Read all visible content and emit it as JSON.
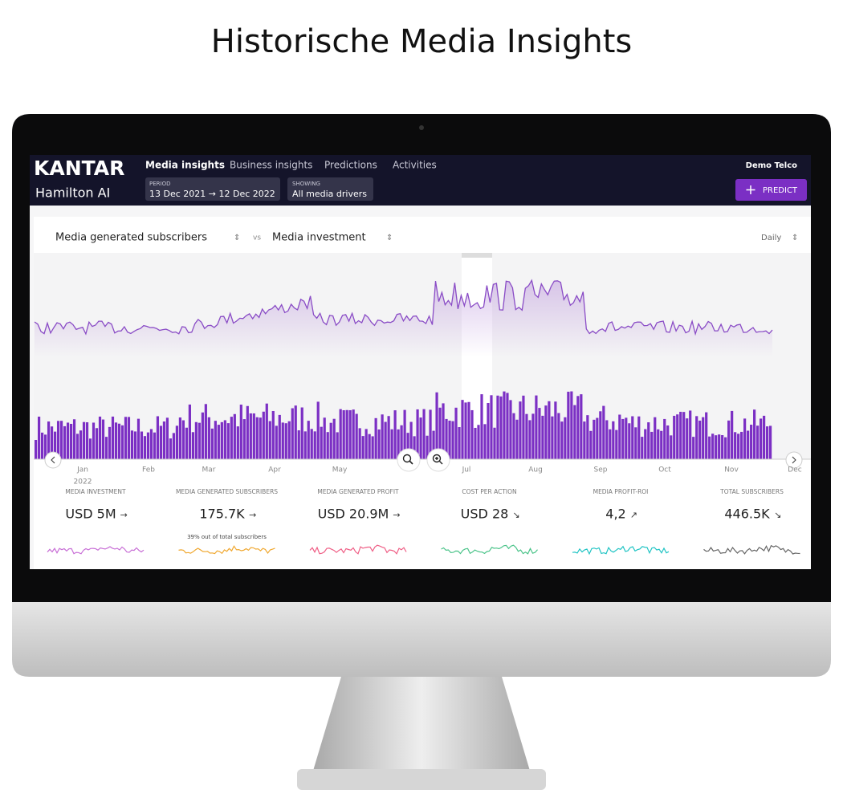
{
  "title": "Historische Media Insights",
  "nav": {
    "brand": "KANTAR",
    "product": "Hamilton AI",
    "tabs": [
      "Media insights",
      "Business insights",
      "Predictions",
      "Activities"
    ],
    "period": {
      "label": "PERIOD",
      "value": "13 Dec 2021 → 12 Dec 2022"
    },
    "showing": {
      "label": "SHOWING",
      "value": "All media drivers"
    },
    "account": "Demo Telco",
    "predict": "PREDICT"
  },
  "chart": {
    "metric_a": "Media generated subscribers",
    "vs": "vs",
    "metric_b": "Media investment",
    "granularity": "Daily",
    "months": [
      "Jan",
      "Feb",
      "Mar",
      "Apr",
      "May",
      "Jul",
      "Aug",
      "Sep",
      "Oct",
      "Nov",
      "Dec"
    ],
    "year": "2022"
  },
  "kpis": [
    {
      "label": "MEDIA INVESTMENT",
      "value": "USD 5M",
      "trend": "→"
    },
    {
      "label": "MEDIA GENERATED SUBSCRIBERS",
      "value": "175.7K",
      "trend": "→",
      "note": "39% out of total subscribers"
    },
    {
      "label": "MEDIA GENERATED PROFIT",
      "value": "USD 20.9M",
      "trend": "→"
    },
    {
      "label": "COST PER ACTION",
      "value": "USD 28",
      "trend": "↘"
    },
    {
      "label": "MEDIA PROFIT-ROI",
      "value": "4,2",
      "trend": "↗"
    },
    {
      "label": "TOTAL SUBSCRIBERS",
      "value": "446.5K",
      "trend": "↘"
    }
  ]
}
